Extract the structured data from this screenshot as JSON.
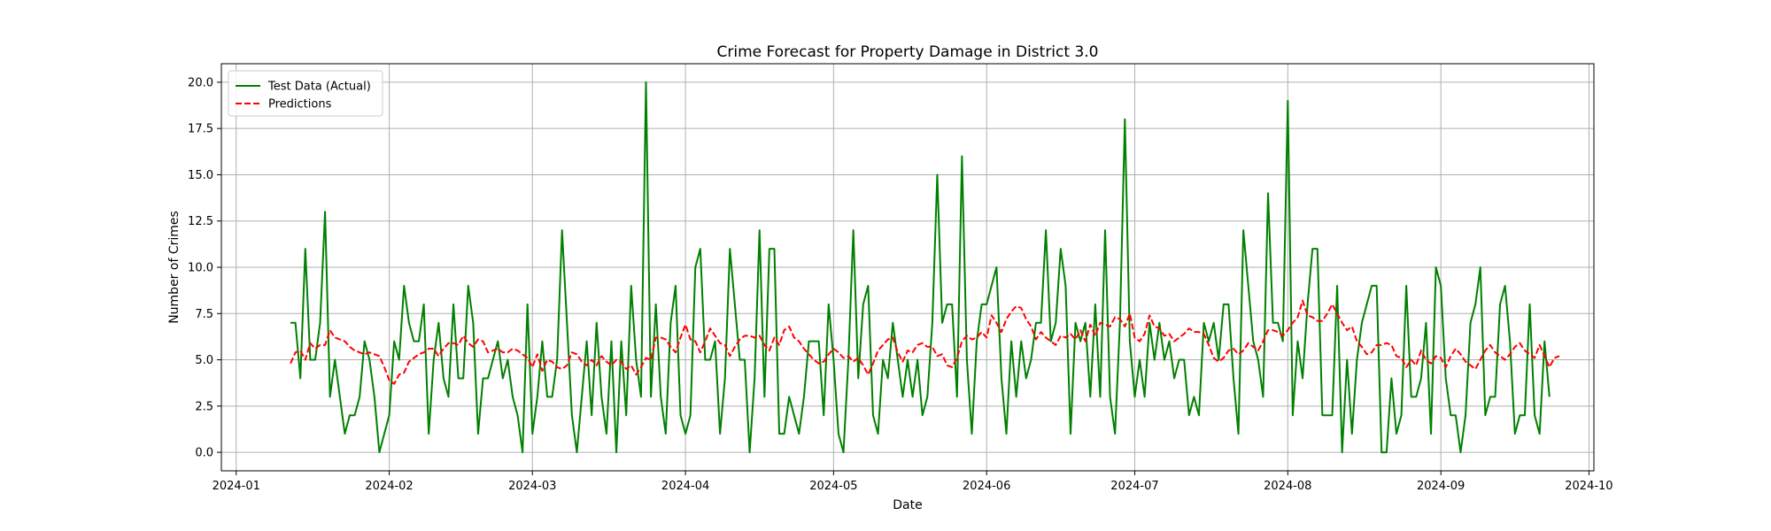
{
  "chart_data": {
    "type": "line",
    "title": "Crime Forecast for Property Damage in District 3.0",
    "xlabel": "Date",
    "ylabel": "Number of Crimes",
    "xlim": [
      "2023-12-29",
      "2024-10-02"
    ],
    "ylim": [
      -1.0,
      21.0
    ],
    "x_ticks": [
      "2024-01",
      "2024-02",
      "2024-03",
      "2024-04",
      "2024-05",
      "2024-06",
      "2024-07",
      "2024-08",
      "2024-09",
      "2024-10"
    ],
    "y_ticks": [
      0.0,
      2.5,
      5.0,
      7.5,
      10.0,
      12.5,
      15.0,
      17.5,
      20.0
    ],
    "y_tick_labels": [
      "0.0",
      "2.5",
      "5.0",
      "7.5",
      "10.0",
      "12.5",
      "15.0",
      "17.5",
      "20.0"
    ],
    "grid": true,
    "legend": {
      "position": "upper-left"
    },
    "x_start": "2024-01-12",
    "x_frequency": "daily",
    "series": [
      {
        "name": "Test Data (Actual)",
        "color": "#008000",
        "style": "solid",
        "values": [
          7,
          7,
          4,
          11,
          5,
          5,
          7,
          13,
          3,
          5,
          3,
          1,
          2,
          2,
          3,
          6,
          5,
          3,
          0,
          1,
          2,
          6,
          5,
          9,
          7,
          6,
          6,
          8,
          1,
          5,
          7,
          4,
          3,
          8,
          4,
          4,
          9,
          7,
          1,
          4,
          4,
          5,
          6,
          4,
          5,
          3,
          2,
          0,
          8,
          1,
          3,
          6,
          3,
          3,
          5,
          12,
          7,
          2,
          0,
          3,
          6,
          2,
          7,
          3,
          1,
          6,
          0,
          6,
          2,
          9,
          5,
          3,
          20,
          3,
          8,
          3,
          1,
          7,
          9,
          2,
          1,
          2,
          10,
          11,
          5,
          5,
          6,
          1,
          4,
          11,
          8,
          5,
          5,
          0,
          4,
          12,
          3,
          11,
          11,
          1,
          1,
          3,
          2,
          1,
          3,
          6,
          6,
          6,
          2,
          8,
          5,
          1,
          0,
          5,
          12,
          4,
          8,
          9,
          2,
          1,
          5,
          4,
          7,
          5,
          3,
          5,
          3,
          5,
          2,
          3,
          7,
          15,
          7,
          8,
          8,
          3,
          16,
          5,
          1,
          6,
          8,
          8,
          9,
          10,
          4,
          1,
          6,
          3,
          6,
          4,
          5,
          7,
          7,
          12,
          6,
          7,
          11,
          9,
          1,
          7,
          6,
          7,
          3,
          8,
          3,
          12,
          3,
          1,
          7,
          18,
          6,
          3,
          5,
          3,
          7,
          5,
          7,
          5,
          6,
          4,
          5,
          5,
          2,
          3,
          2,
          7,
          6,
          7,
          5,
          8,
          8,
          4,
          1,
          12,
          9,
          6,
          5,
          3,
          14,
          7,
          7,
          6,
          19,
          2,
          6,
          4,
          8,
          11,
          11,
          2,
          2,
          2,
          9,
          0,
          5,
          1,
          5,
          7,
          8,
          9,
          9,
          0,
          0,
          4,
          1,
          2,
          9,
          3,
          3,
          4,
          7,
          1,
          10,
          9,
          4,
          2,
          2,
          0,
          2,
          7,
          8,
          10,
          2,
          3,
          3,
          8,
          9,
          6,
          1,
          2,
          2,
          8,
          2,
          1,
          6,
          3
        ]
      },
      {
        "name": "Predictions",
        "color": "#ff0000",
        "style": "dashed",
        "values": [
          4.8,
          5.4,
          5.5,
          5.0,
          5.9,
          5.6,
          5.8,
          5.8,
          6.6,
          6.2,
          6.1,
          6.0,
          5.7,
          5.5,
          5.4,
          5.3,
          5.4,
          5.3,
          5.2,
          4.6,
          3.9,
          3.7,
          4.2,
          4.3,
          4.9,
          5.1,
          5.3,
          5.4,
          5.6,
          5.6,
          5.2,
          5.6,
          5.9,
          5.9,
          5.8,
          6.3,
          5.9,
          5.7,
          6.1,
          6.0,
          5.4,
          5.5,
          5.6,
          5.4,
          5.4,
          5.6,
          5.5,
          5.3,
          5.1,
          4.6,
          5.3,
          4.4,
          5.0,
          4.9,
          4.6,
          4.5,
          4.7,
          5.4,
          5.3,
          4.9,
          4.7,
          5.0,
          4.7,
          5.2,
          4.9,
          4.7,
          5.0,
          4.9,
          4.5,
          4.7,
          4.2,
          4.6,
          5.1,
          5.0,
          6.2,
          6.2,
          6.1,
          5.7,
          5.4,
          6.2,
          6.9,
          6.1,
          6.0,
          5.4,
          6.0,
          6.7,
          6.3,
          5.9,
          5.8,
          5.2,
          5.7,
          6.1,
          6.3,
          6.3,
          6.2,
          6.3,
          5.8,
          5.5,
          6.2,
          5.8,
          6.6,
          6.8,
          6.2,
          6.0,
          5.6,
          5.3,
          5.0,
          4.8,
          4.9,
          5.3,
          5.6,
          5.4,
          5.1,
          5.2,
          4.9,
          5.1,
          4.7,
          4.2,
          4.8,
          5.5,
          5.8,
          6.1,
          6.2,
          5.4,
          4.9,
          5.5,
          5.4,
          5.8,
          5.9,
          5.7,
          5.7,
          5.2,
          5.3,
          4.7,
          4.6,
          5.1,
          6.0,
          6.3,
          6.1,
          6.2,
          6.5,
          6.2,
          7.4,
          7.0,
          6.5,
          7.2,
          7.6,
          7.9,
          7.8,
          7.2,
          6.8,
          6.1,
          6.5,
          6.2,
          6.0,
          5.8,
          6.3,
          6.2,
          6.4,
          6.1,
          6.6,
          6.0,
          6.9,
          6.3,
          7.0,
          6.9,
          6.8,
          7.3,
          7.2,
          6.8,
          7.5,
          6.2,
          6.0,
          6.4,
          7.4,
          6.8,
          6.7,
          6.3,
          6.4,
          6.0,
          6.2,
          6.4,
          6.7,
          6.5,
          6.5,
          6.4,
          5.8,
          5.1,
          4.9,
          5.1,
          5.5,
          5.6,
          5.3,
          5.5,
          5.9,
          5.7,
          5.5,
          6.0,
          6.6,
          6.6,
          6.5,
          6.3,
          6.6,
          7.0,
          7.3,
          8.2,
          7.4,
          7.3,
          7.1,
          7.1,
          7.5,
          8.0,
          7.5,
          7.0,
          6.6,
          6.8,
          6.0,
          5.7,
          5.3,
          5.4,
          5.8,
          5.8,
          5.9,
          5.8,
          5.2,
          5.1,
          4.6,
          5.0,
          4.7,
          5.5,
          5.0,
          4.8,
          5.2,
          5.1,
          4.6,
          5.2,
          5.6,
          5.3,
          4.9,
          4.7,
          4.5,
          5.0,
          5.5,
          5.8,
          5.4,
          5.2,
          5.0,
          5.3,
          5.7,
          5.9,
          5.5,
          5.3,
          5.1,
          5.8,
          5.2,
          4.6,
          5.1,
          5.2
        ]
      }
    ]
  }
}
